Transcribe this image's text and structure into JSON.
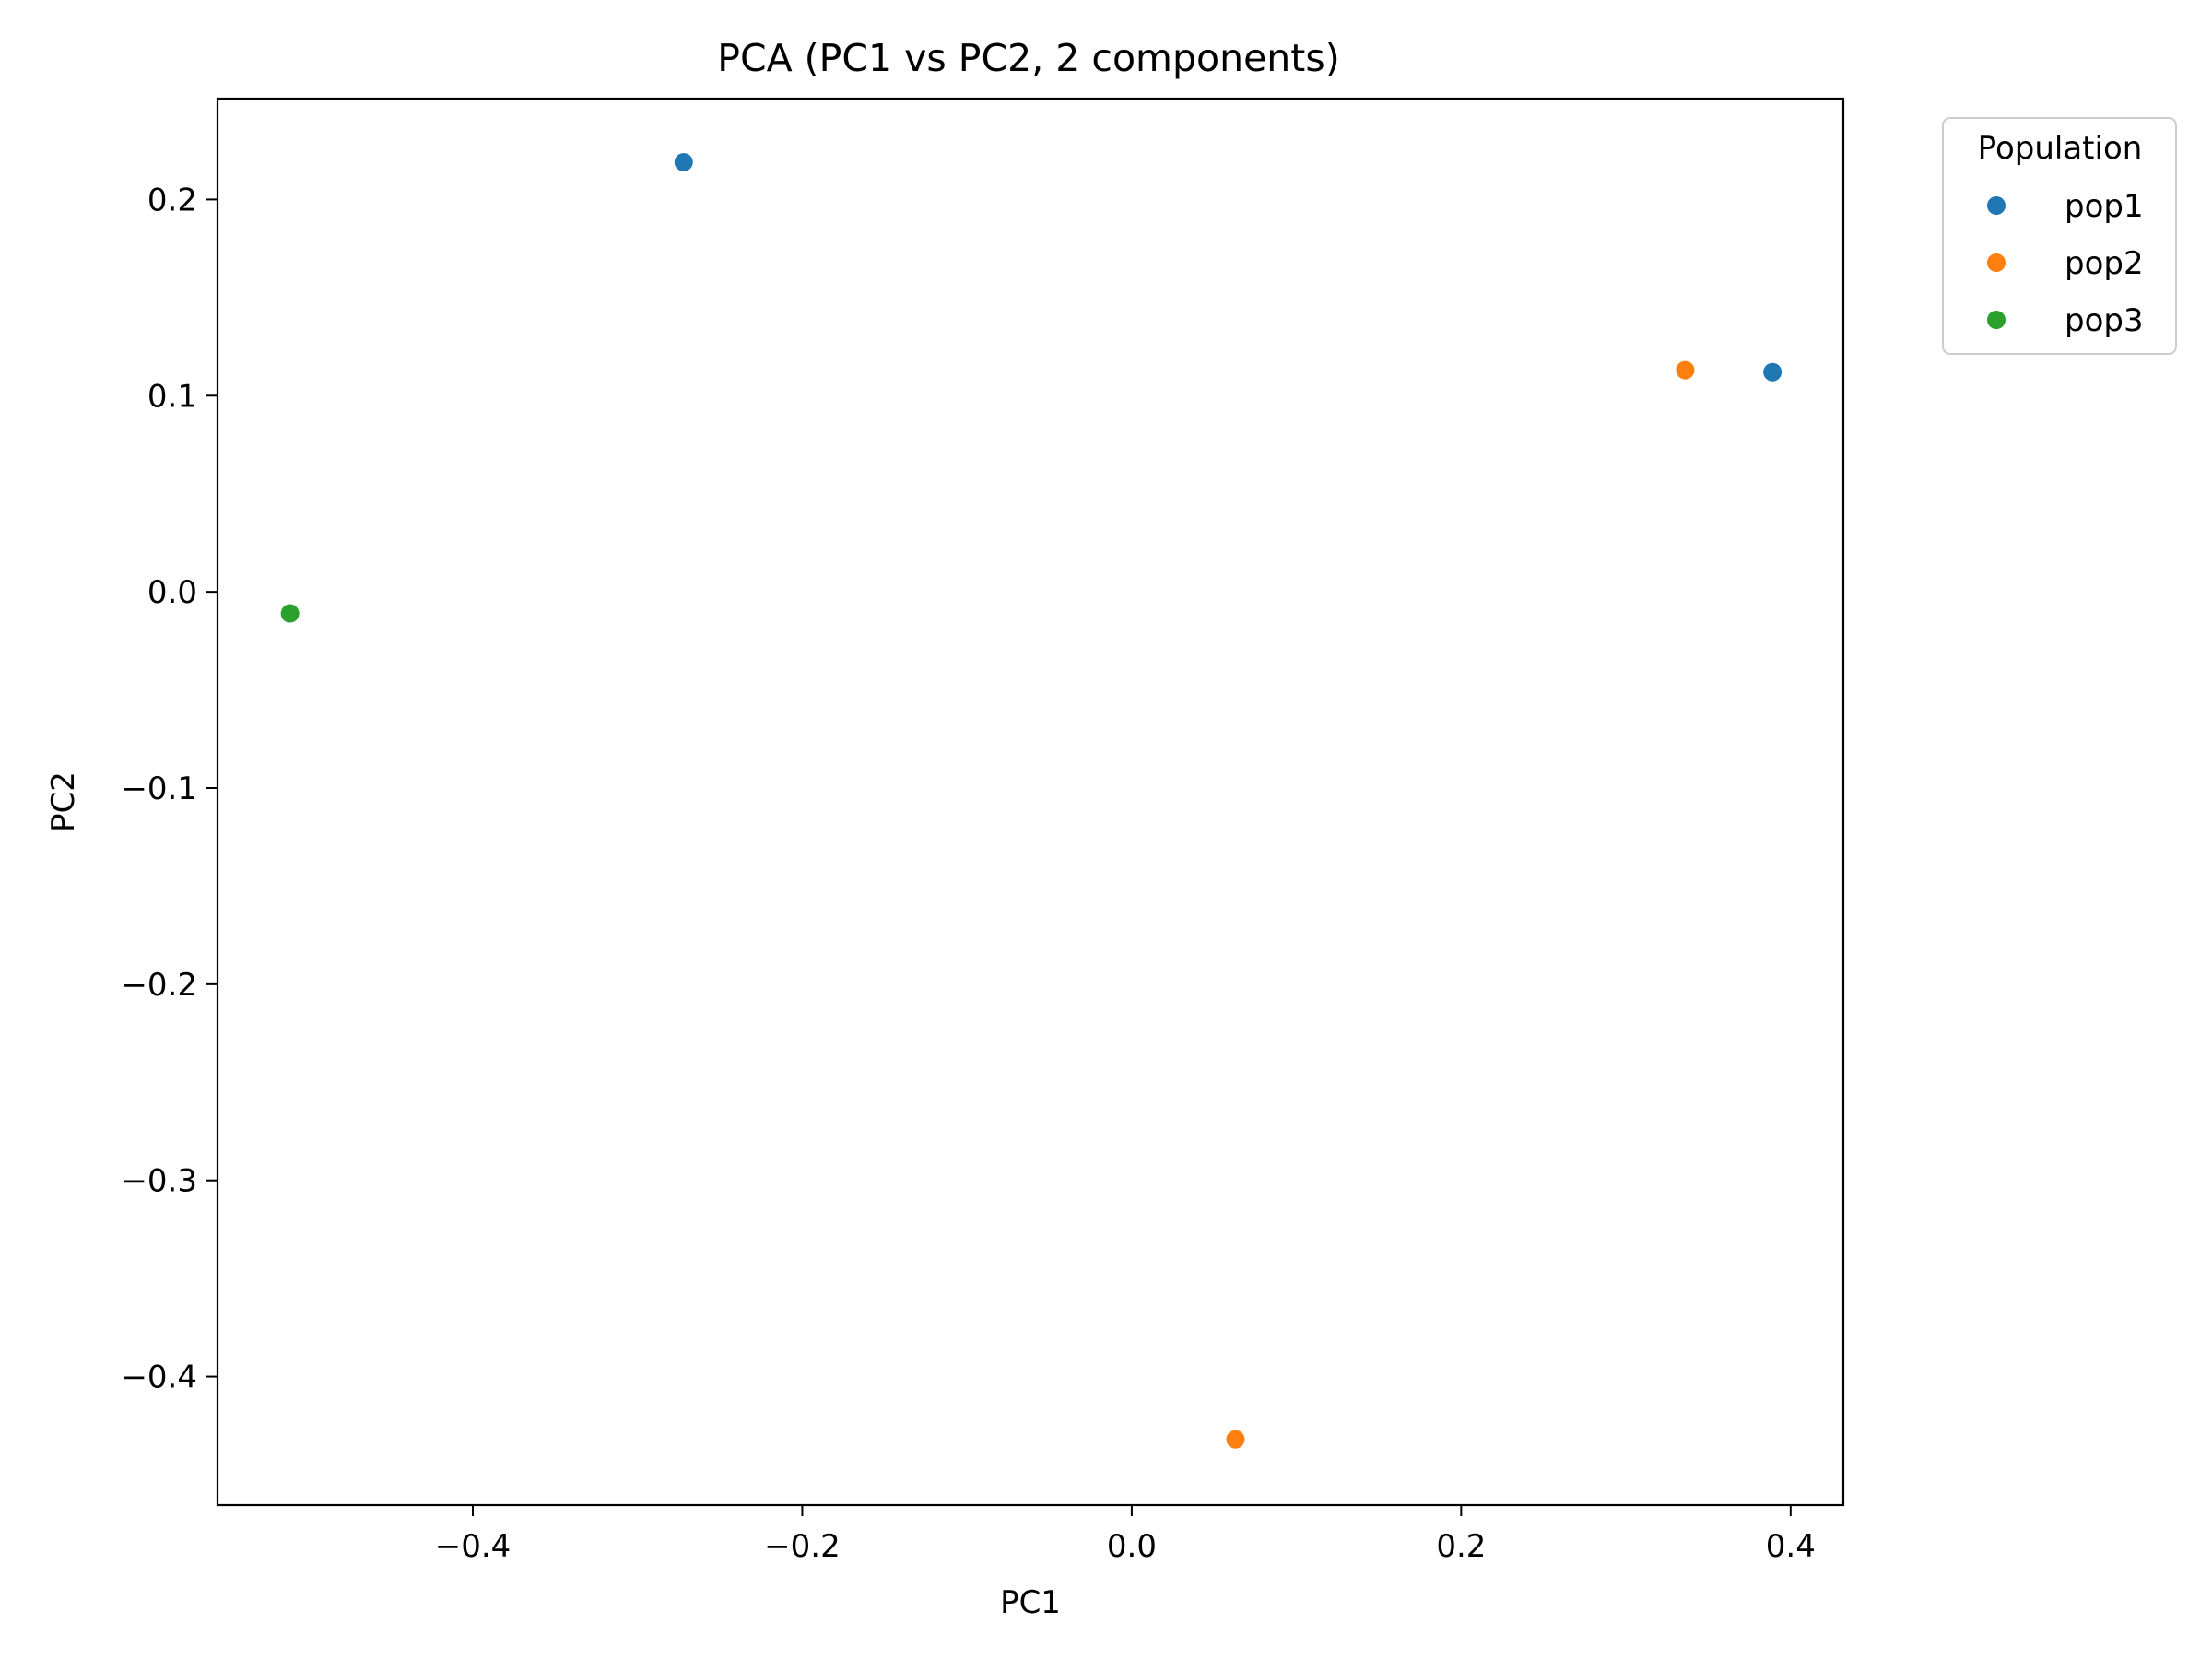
{
  "chart_data": {
    "type": "scatter",
    "title": "PCA (PC1 vs PC2, 2 components)",
    "xlabel": "PC1",
    "ylabel": "PC2",
    "xlim": [
      -0.555,
      0.432
    ],
    "ylim": [
      -0.4655,
      0.2514
    ],
    "xticks": [
      -0.4,
      -0.2,
      0.0,
      0.2,
      0.4
    ],
    "xtick_labels": [
      "−0.4",
      "−0.2",
      "0.0",
      "0.2",
      "0.4"
    ],
    "yticks": [
      -0.4,
      -0.3,
      -0.2,
      -0.1,
      0.0,
      0.1,
      0.2
    ],
    "ytick_labels": [
      "−0.4",
      "−0.3",
      "−0.2",
      "−0.1",
      "0.0",
      "0.1",
      "0.2"
    ],
    "grid": false,
    "legend": {
      "title": "Population",
      "placement": "outside-top-right"
    },
    "series": [
      {
        "name": "pop1",
        "color": "#1f77b4",
        "points": [
          {
            "x": -0.272,
            "y": 0.219
          },
          {
            "x": 0.389,
            "y": 0.112
          }
        ]
      },
      {
        "name": "pop2",
        "color": "#ff7f0e",
        "points": [
          {
            "x": 0.336,
            "y": 0.113
          },
          {
            "x": 0.063,
            "y": -0.432
          }
        ]
      },
      {
        "name": "pop3",
        "color": "#2ca02c",
        "points": [
          {
            "x": -0.511,
            "y": -0.011
          }
        ]
      }
    ]
  }
}
